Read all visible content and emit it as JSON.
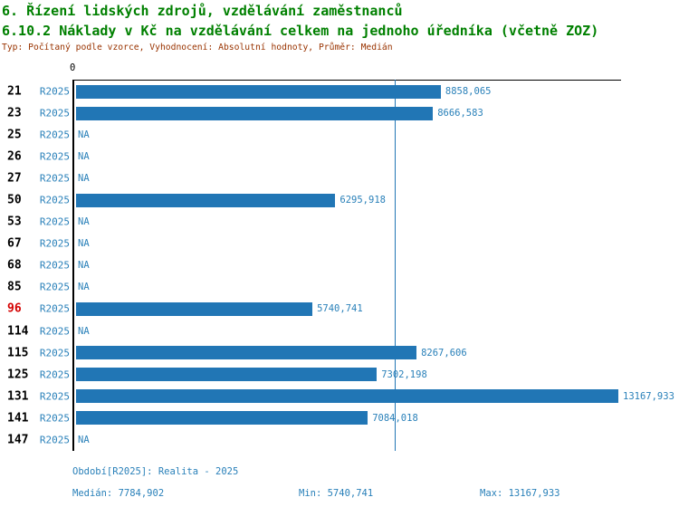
{
  "header": {
    "title_line1": "6. Řízení lidských zdrojů, vzdělávání zaměstnanců",
    "title_line2": "6.10.2 Náklady v Kč na vzdělávání celkem na jednoho úředníka (včetně ZOZ)",
    "subtitle": "Typ: Počítaný podle vzorce, Vyhodnocení: Absolutní hodnoty, Průměr: Medián"
  },
  "colors": {
    "bar_blue": "#2176B5",
    "text_blue": "#2980B9",
    "title_green": "#008000",
    "subtitle_dark_red": "#993300",
    "highlight_red": "#D40000",
    "axis_black": "#000000",
    "background": "#FFFFFF"
  },
  "chart_data": {
    "type": "bar",
    "orientation": "horizontal",
    "title": "6.10.2 Náklady v Kč na vzdělávání celkem na jednoho úředníka (včetně ZOZ)",
    "axis_zero_label": "0",
    "period_label": "R2025",
    "median_value": 7784.902,
    "min_value": 5740.741,
    "max_value": 13167.933,
    "na_text": "NA",
    "categories": [
      "21",
      "23",
      "25",
      "26",
      "27",
      "50",
      "53",
      "67",
      "68",
      "85",
      "96",
      "114",
      "115",
      "125",
      "131",
      "141",
      "147"
    ],
    "rows": [
      {
        "id": "21",
        "period": "R2025",
        "value": 8858.065,
        "display": "8858,065",
        "highlight": false
      },
      {
        "id": "23",
        "period": "R2025",
        "value": 8666.583,
        "display": "8666,583",
        "highlight": false
      },
      {
        "id": "25",
        "period": "R2025",
        "value": null,
        "display": "NA",
        "highlight": false
      },
      {
        "id": "26",
        "period": "R2025",
        "value": null,
        "display": "NA",
        "highlight": false
      },
      {
        "id": "27",
        "period": "R2025",
        "value": null,
        "display": "NA",
        "highlight": false
      },
      {
        "id": "50",
        "period": "R2025",
        "value": 6295.918,
        "display": "6295,918",
        "highlight": false
      },
      {
        "id": "53",
        "period": "R2025",
        "value": null,
        "display": "NA",
        "highlight": false
      },
      {
        "id": "67",
        "period": "R2025",
        "value": null,
        "display": "NA",
        "highlight": false
      },
      {
        "id": "68",
        "period": "R2025",
        "value": null,
        "display": "NA",
        "highlight": false
      },
      {
        "id": "85",
        "period": "R2025",
        "value": null,
        "display": "NA",
        "highlight": false
      },
      {
        "id": "96",
        "period": "R2025",
        "value": 5740.741,
        "display": "5740,741",
        "highlight": true
      },
      {
        "id": "114",
        "period": "R2025",
        "value": null,
        "display": "NA",
        "highlight": false
      },
      {
        "id": "115",
        "period": "R2025",
        "value": 8267.606,
        "display": "8267,606",
        "highlight": false
      },
      {
        "id": "125",
        "period": "R2025",
        "value": 7302.198,
        "display": "7302,198",
        "highlight": false
      },
      {
        "id": "131",
        "period": "R2025",
        "value": 13167.933,
        "display": "13167,933",
        "highlight": false
      },
      {
        "id": "141",
        "period": "R2025",
        "value": 7084.018,
        "display": "7084,018",
        "highlight": false
      },
      {
        "id": "147",
        "period": "R2025",
        "value": null,
        "display": "NA",
        "highlight": false
      }
    ]
  },
  "footer": {
    "period_line": "Období[R2025]: Realita - 2025",
    "median_label": "Medián: 7784,902",
    "min_label": "Min: 5740,741",
    "max_label": "Max: 13167,933"
  }
}
